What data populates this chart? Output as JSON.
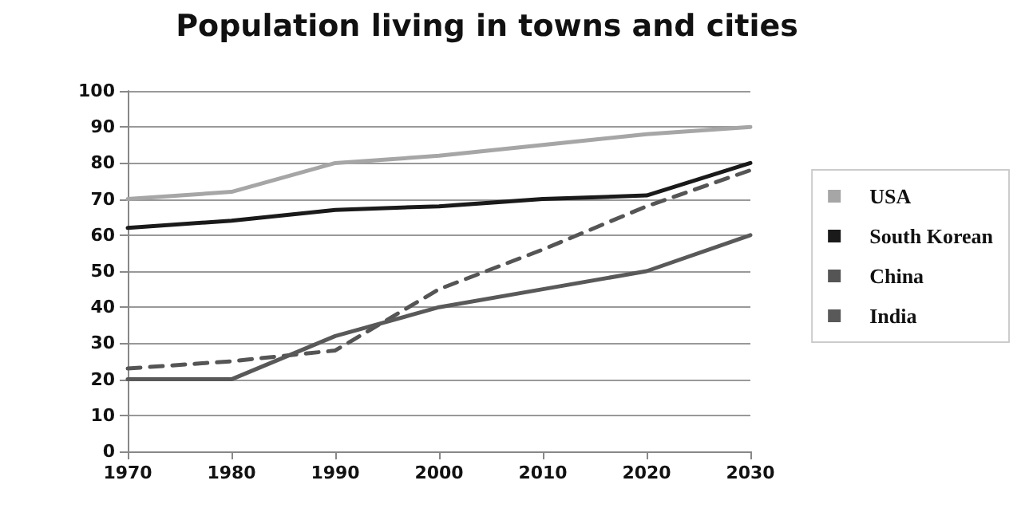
{
  "chart_data": {
    "type": "line",
    "title": "Population living in towns and cities",
    "categories": [
      "1970",
      "1980",
      "1990",
      "2000",
      "2010",
      "2020",
      "2030"
    ],
    "series": [
      {
        "name": "USA",
        "color": "#a6a6a6",
        "line_style": "solid",
        "values": [
          70,
          72,
          80,
          82,
          85,
          88,
          90
        ]
      },
      {
        "name": "South Korean",
        "color": "#1a1a1a",
        "line_style": "solid",
        "values": [
          62,
          64,
          67,
          68,
          70,
          71,
          80
        ]
      },
      {
        "name": "China",
        "color": "#555555",
        "line_style": "dashed",
        "values": [
          23,
          25,
          28,
          45,
          56,
          68,
          78
        ]
      },
      {
        "name": "India",
        "color": "#595959",
        "line_style": "solid",
        "values": [
          20,
          20,
          32,
          40,
          45,
          50,
          60
        ]
      }
    ],
    "ylim": [
      0,
      100
    ],
    "yticks": [
      0,
      10,
      20,
      30,
      40,
      50,
      60,
      70,
      80,
      90,
      100
    ],
    "grid": "y",
    "legend": "right",
    "marker": "none"
  }
}
